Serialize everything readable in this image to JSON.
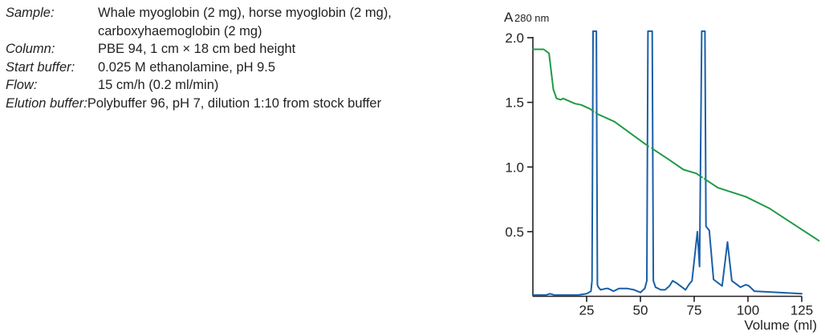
{
  "parameters": [
    {
      "label": "Sample:",
      "lines": [
        "Whale myoglobin (2 mg), horse myoglobin (2 mg),",
        "carboxyhaemoglobin (2 mg)"
      ]
    },
    {
      "label": "Column:",
      "lines": [
        "PBE 94, 1 cm × 18 cm bed height"
      ]
    },
    {
      "label": "Start buffer:",
      "lines": [
        "0.025 M ethanolamine, pH 9.5"
      ]
    },
    {
      "label": "Flow:",
      "lines": [
        "15 cm/h (0.2 ml/min)"
      ]
    },
    {
      "label": "Elution buffer:",
      "lines": [
        "Polybuffer 96, pH 7, dilution 1:10 from stock buffer"
      ]
    }
  ],
  "chart": {
    "ylabel_main": "A",
    "ylabel_sub": "280 nm",
    "xlabel": "Volume (ml)",
    "yticks": [
      "2.0",
      "1.5",
      "1.0",
      "0.5"
    ],
    "xticks": [
      "25",
      "50",
      "75",
      "100",
      "125"
    ],
    "colors": {
      "absorbance": "#1a5fa8",
      "ph": "#1f9a48",
      "axis": "#231f20"
    }
  },
  "chart_data": {
    "type": "line",
    "title": "",
    "xlabel": "Volume (ml)",
    "ylabel": "A280 nm",
    "xlim": [
      0,
      125
    ],
    "ylim": [
      0,
      2.0
    ],
    "xticks": [
      25,
      50,
      75,
      100,
      125
    ],
    "yticks": [
      0.5,
      1.0,
      1.5,
      2.0
    ],
    "grid": false,
    "legend": "none",
    "series": [
      {
        "name": "A280 nm (absorbance)",
        "color": "#1a5fa8",
        "x": [
          0,
          6,
          8,
          10,
          21,
          25,
          27,
          27.5,
          28,
          29.5,
          30,
          30.5,
          31.5,
          34,
          35,
          37.5,
          40,
          44,
          47,
          50,
          52,
          53,
          53.5,
          55.5,
          56,
          57,
          59.5,
          61.5,
          63.5,
          65,
          67,
          71,
          72.5,
          74,
          76.5,
          77.5,
          78.5,
          80,
          80.5,
          82,
          84,
          88,
          90.5,
          92.5,
          96.5,
          99,
          100.5,
          103,
          125
        ],
        "y": [
          0.01,
          0.01,
          0.02,
          0.01,
          0.01,
          0.02,
          0.04,
          0.12,
          2.05,
          2.05,
          0.09,
          0.07,
          0.05,
          0.06,
          0.06,
          0.04,
          0.06,
          0.06,
          0.05,
          0.03,
          0.06,
          0.12,
          2.05,
          2.05,
          0.12,
          0.07,
          0.05,
          0.05,
          0.08,
          0.12,
          0.1,
          0.05,
          0.09,
          0.12,
          0.5,
          0.23,
          2.05,
          2.05,
          0.54,
          0.51,
          0.13,
          0.08,
          0.42,
          0.12,
          0.07,
          0.09,
          0.08,
          0.04,
          0.02
        ]
      },
      {
        "name": "pH gradient",
        "color": "#1f9a48",
        "x": [
          0,
          5,
          7.5,
          8.5,
          9.5,
          11,
          13,
          14,
          15.5,
          19.5,
          22.5,
          26.5,
          30,
          38,
          52,
          63,
          70,
          76,
          86,
          99,
          110,
          133
        ],
        "y": [
          1.91,
          1.91,
          1.88,
          1.74,
          1.6,
          1.53,
          1.52,
          1.53,
          1.52,
          1.49,
          1.48,
          1.45,
          1.41,
          1.35,
          1.18,
          1.06,
          0.98,
          0.95,
          0.84,
          0.77,
          0.68,
          0.43
        ]
      }
    ]
  }
}
